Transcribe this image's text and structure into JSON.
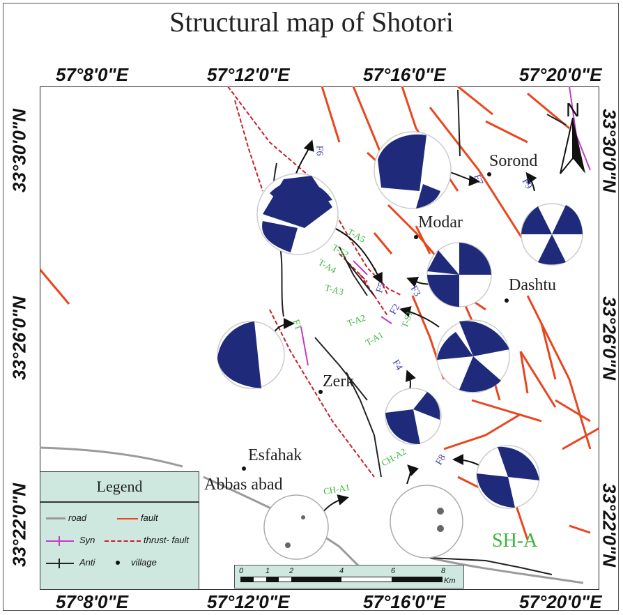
{
  "title": "Structural map of Shotori",
  "coords": {
    "top": [
      "57°8'0\"E",
      "57°12'0\"E",
      "57°16'0\"E",
      "57°20'0\"E"
    ],
    "bottom": [
      "57°8'0\"E",
      "57°12'0\"E",
      "57°16'0\"E",
      "57°20'0\"E"
    ],
    "left": [
      "33°30'0\"N",
      "33°26'0\"N",
      "33°22'0\"N"
    ],
    "right": [
      "33°30'0\"N",
      "33°26'0\"N",
      "33°22'0\"N"
    ]
  },
  "north_label": "N",
  "villages": [
    "Sorond",
    "Modar",
    "Dashtu",
    "Zerk",
    "Esfahak",
    "Abbas abad"
  ],
  "fault_labels": [
    "F6",
    "F7",
    "F9",
    "F1",
    "F5",
    "F3",
    "F2",
    "F4",
    "F8"
  ],
  "structure_labels": [
    "T-A5",
    "T-S2",
    "T-A4",
    "T-A3",
    "T-A2",
    "T-S1",
    "T-A1",
    "CH-A2",
    "CH-A1"
  ],
  "area_label": "SH-A",
  "legend": {
    "title": "Legend",
    "items": [
      "road",
      "fault",
      "Syn",
      "thrust- fault",
      "Anti",
      "village"
    ]
  },
  "scale": {
    "ticks": [
      "0",
      "1",
      "2",
      "4",
      "6",
      "8"
    ],
    "unit": "Km"
  },
  "colors": {
    "fault": "#e8461e",
    "thrust": "#c4202a",
    "syncline": "#c03cc0",
    "beachball": "#1f2b7a",
    "fold_label": "#39b539",
    "fault_label": "#3b3bb0",
    "legend_bg": "#cfe8df"
  }
}
